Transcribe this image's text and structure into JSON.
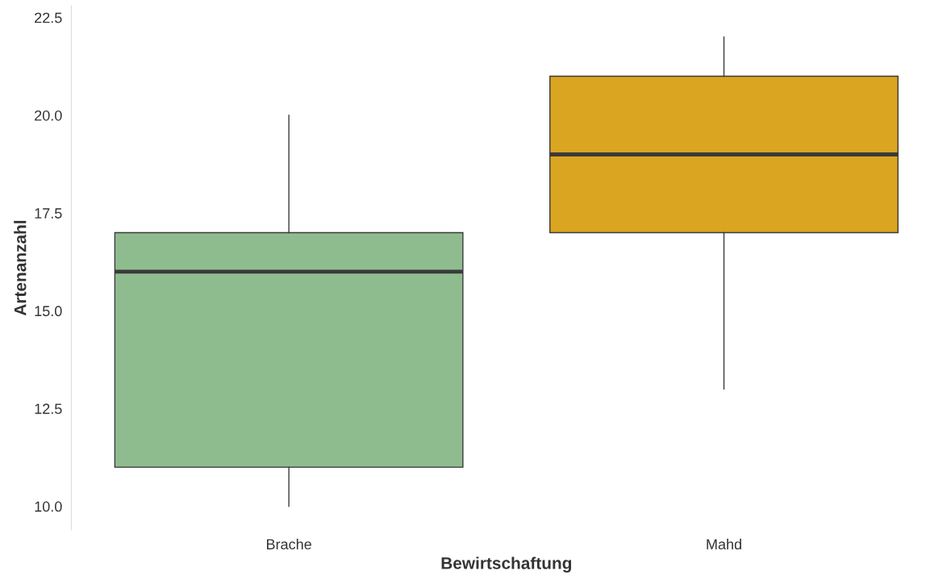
{
  "chart_data": {
    "type": "box",
    "xlabel": "Bewirtschaftung",
    "ylabel": "Artenanzahl",
    "categories": [
      "Brache",
      "Mahd"
    ],
    "boxes": [
      {
        "low": 10,
        "q1": 11,
        "median": 16,
        "q3": 17,
        "high": 20
      },
      {
        "low": 13,
        "q1": 17,
        "median": 19,
        "q3": 21,
        "high": 22
      }
    ],
    "colors": [
      "#8fbc8f",
      "#daa520"
    ],
    "ylim": [
      9.4,
      22.8
    ],
    "yticks": [
      {
        "value": 10,
        "label": "10.0"
      },
      {
        "value": 12.5,
        "label": "12.5"
      },
      {
        "value": 15,
        "label": "15.0"
      },
      {
        "value": 17.5,
        "label": "17.5"
      },
      {
        "value": 20,
        "label": "20.0"
      },
      {
        "value": 22.5,
        "label": "22.5"
      }
    ],
    "grid": false
  }
}
